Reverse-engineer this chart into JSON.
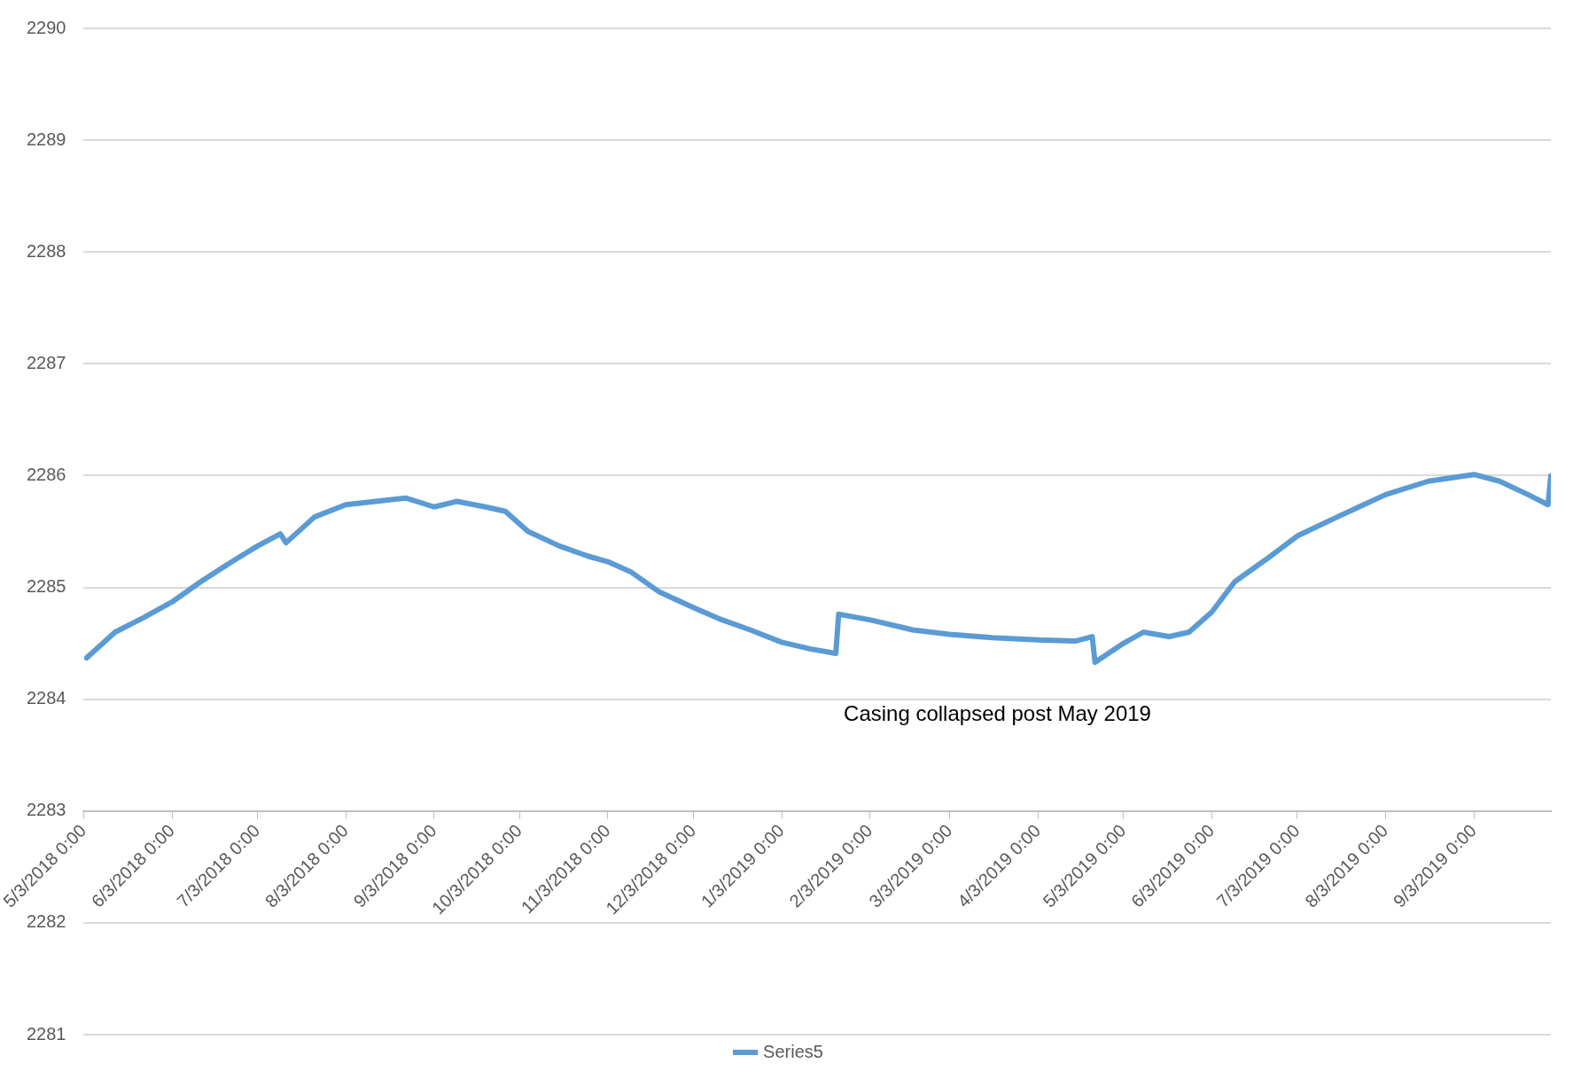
{
  "chart_data": {
    "type": "line",
    "x": [
      "2018-05-04",
      "2018-05-14",
      "2018-05-24",
      "2018-06-03",
      "2018-06-13",
      "2018-06-24",
      "2018-07-03",
      "2018-07-11",
      "2018-07-13",
      "2018-07-23",
      "2018-08-03",
      "2018-08-17",
      "2018-08-24",
      "2018-09-03",
      "2018-09-11",
      "2018-09-21",
      "2018-09-28",
      "2018-10-06",
      "2018-10-17",
      "2018-10-27",
      "2018-11-03",
      "2018-11-11",
      "2018-11-21",
      "2018-12-03",
      "2018-12-12",
      "2018-12-23",
      "2019-01-03",
      "2019-01-13",
      "2019-01-22",
      "2019-01-23",
      "2019-02-03",
      "2019-02-18",
      "2019-03-03",
      "2019-03-18",
      "2019-04-03",
      "2019-04-16",
      "2019-04-22",
      "2019-04-23",
      "2019-05-03",
      "2019-05-10",
      "2019-05-19",
      "2019-05-26",
      "2019-06-03",
      "2019-06-11",
      "2019-06-22",
      "2019-07-03",
      "2019-07-17",
      "2019-08-03",
      "2019-08-18",
      "2019-09-03",
      "2019-09-12",
      "2019-09-22",
      "2019-09-29",
      "2019-09-30"
    ],
    "series": [
      {
        "name": "Series5",
        "color": "#5b9bd5",
        "values": [
          2284.37,
          2284.6,
          2284.73,
          2284.87,
          2285.05,
          2285.23,
          2285.37,
          2285.48,
          2285.4,
          2285.63,
          2285.74,
          2285.78,
          2285.8,
          2285.72,
          2285.77,
          2285.72,
          2285.68,
          2285.5,
          2285.37,
          2285.28,
          2285.23,
          2285.14,
          2284.96,
          2284.82,
          2284.72,
          2284.62,
          2284.51,
          2284.45,
          2284.41,
          2284.76,
          2284.71,
          2284.62,
          2284.58,
          2284.55,
          2284.53,
          2284.52,
          2284.56,
          2284.33,
          2284.5,
          2284.6,
          2284.56,
          2284.6,
          2284.78,
          2285.05,
          2285.25,
          2285.46,
          2285.63,
          2285.83,
          2285.95,
          2286.01,
          2285.95,
          2285.83,
          2285.74,
          2286.0
        ]
      }
    ],
    "xlim": [
      "2018-05-03",
      "2019-09-30"
    ],
    "xticks": [
      {
        "value": "2018-05-03",
        "label": "5/3/2018 0:00"
      },
      {
        "value": "2018-06-03",
        "label": "6/3/2018 0:00"
      },
      {
        "value": "2018-07-03",
        "label": "7/3/2018 0:00"
      },
      {
        "value": "2018-08-03",
        "label": "8/3/2018 0:00"
      },
      {
        "value": "2018-09-03",
        "label": "9/3/2018 0:00"
      },
      {
        "value": "2018-10-03",
        "label": "10/3/2018 0:00"
      },
      {
        "value": "2018-11-03",
        "label": "11/3/2018 0:00"
      },
      {
        "value": "2018-12-03",
        "label": "12/3/2018 0:00"
      },
      {
        "value": "2019-01-03",
        "label": "1/3/2019 0:00"
      },
      {
        "value": "2019-02-03",
        "label": "2/3/2019 0:00"
      },
      {
        "value": "2019-03-03",
        "label": "3/3/2019 0:00"
      },
      {
        "value": "2019-04-03",
        "label": "4/3/2019 0:00"
      },
      {
        "value": "2019-05-03",
        "label": "5/3/2019 0:00"
      },
      {
        "value": "2019-06-03",
        "label": "6/3/2019 0:00"
      },
      {
        "value": "2019-07-03",
        "label": "7/3/2019 0:00"
      },
      {
        "value": "2019-08-03",
        "label": "8/3/2019 0:00"
      },
      {
        "value": "2019-09-03",
        "label": "9/3/2019 0:00"
      }
    ],
    "ylim": [
      2281,
      2290
    ],
    "yticks": [
      2281,
      2282,
      2283,
      2284,
      2285,
      2286,
      2287,
      2288,
      2289,
      2290
    ],
    "annotations": [
      "Casing collapsed post May 2019"
    ],
    "grid": "y",
    "legend": "bottom",
    "marker": "none",
    "line_style": "solid"
  }
}
